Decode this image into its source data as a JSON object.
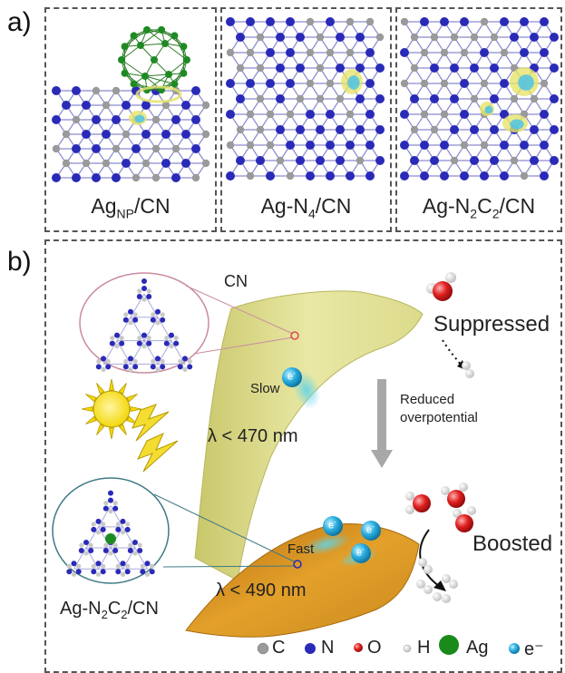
{
  "panel_a": {
    "label": "a)",
    "panels": [
      {
        "main": "Ag",
        "sub": "NP",
        "rest": "/CN"
      },
      {
        "main": "Ag-N",
        "sub": "4",
        "rest": "/CN"
      },
      {
        "main": "Ag-N",
        "sub": "2",
        "mid": "C",
        "sub2": "2",
        "rest": "/CN"
      }
    ]
  },
  "panel_b": {
    "label": "b)",
    "cn_label": "CN",
    "slow_label": "Slow",
    "fast_label": "Fast",
    "electron_label": "e",
    "electron_sup": "-",
    "lambda_top": "λ < 470 nm",
    "lambda_bottom": "λ < 490 nm",
    "reduced_line1": "Reduced",
    "reduced_line2": "overpotential",
    "suppressed": "Suppressed",
    "boosted": "Boosted",
    "ag_label": {
      "main": "Ag-N",
      "sub": "2",
      "mid": "C",
      "sub2": "2",
      "rest": "/CN"
    }
  },
  "legend": [
    {
      "symbol": "C",
      "color": "#9a9a9a"
    },
    {
      "symbol": "N",
      "color": "#2a2ab8"
    },
    {
      "symbol": "O",
      "color": "#e02020"
    },
    {
      "symbol": "H",
      "color": "#e8e8e8"
    },
    {
      "symbol": "Ag",
      "color": "#1a8a1a"
    },
    {
      "symbol": "e⁻",
      "color": "#2ab0e0"
    }
  ],
  "colors": {
    "carbon": "#9a9a9a",
    "nitrogen": "#2a2ab8",
    "silver": "#1f8a24",
    "top_band": "#e6e59a",
    "bottom_band": "#d7951a",
    "electron": "#2aaee0"
  }
}
